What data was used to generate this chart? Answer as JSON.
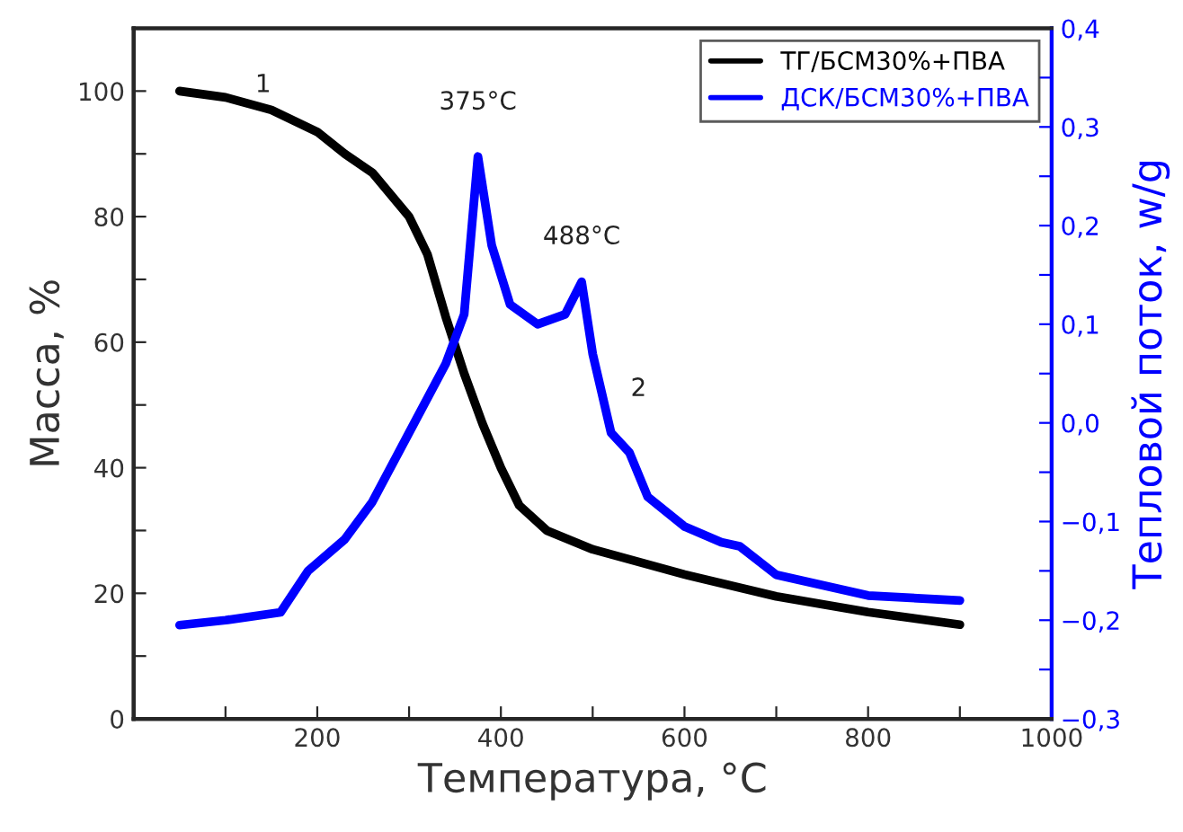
{
  "chart_data": {
    "type": "line",
    "xlabel": "Температура, °C",
    "ylabel": "Масса, %",
    "y2label": "Тепловой поток, w/g",
    "xlim": [
      0,
      1000
    ],
    "xticks": [
      {
        "value": 100,
        "label": null
      },
      200,
      {
        "value": 300,
        "label": null
      },
      400,
      {
        "value": 500,
        "label": null
      },
      600,
      {
        "value": 700,
        "label": null
      },
      800,
      {
        "value": 900,
        "label": null
      },
      1000
    ],
    "ylim": [
      0,
      110
    ],
    "yticks": [
      0,
      {
        "value": 10,
        "label": null
      },
      20,
      {
        "value": 30,
        "label": null
      },
      40,
      {
        "value": 50,
        "label": null
      },
      60,
      {
        "value": 70,
        "label": null
      },
      80,
      {
        "value": 90,
        "label": null
      },
      100
    ],
    "y2lim": [
      -0.3,
      0.4
    ],
    "y2ticks": [
      {
        "value": -0.3,
        "label": "−0,3"
      },
      {
        "value": -0.25,
        "label": null
      },
      {
        "value": -0.2,
        "label": "−0,2"
      },
      {
        "value": -0.15,
        "label": null
      },
      {
        "value": -0.1,
        "label": "−0,1"
      },
      {
        "value": -0.05,
        "label": null
      },
      {
        "value": 0,
        "label": "0,0"
      },
      {
        "value": 0.05,
        "label": null
      },
      {
        "value": 0.1,
        "label": "0,1"
      },
      {
        "value": 0.15,
        "label": null
      },
      {
        "value": 0.2,
        "label": "0,2"
      },
      {
        "value": 0.25,
        "label": null
      },
      {
        "value": 0.3,
        "label": "0,3"
      },
      {
        "value": 0.35,
        "label": null
      },
      {
        "value": 0.4,
        "label": "0,4"
      }
    ],
    "grid": false,
    "legend": "top right",
    "series": [
      {
        "name": "ТГ/БСМ30%+ПВА",
        "color": "#000000",
        "x": [
          50,
          100,
          150,
          200,
          230,
          260,
          300,
          320,
          340,
          360,
          380,
          400,
          420,
          450,
          500,
          600,
          700,
          800,
          900
        ],
        "values": [
          100,
          99,
          97,
          93.5,
          90,
          87,
          80,
          74,
          64,
          55,
          47,
          40,
          34,
          30,
          27,
          23,
          19.5,
          17,
          15
        ]
      },
      {
        "name": "ДСК/БСМ30%+ПВА",
        "color": "#0000ff",
        "axis": "y2",
        "x": [
          50,
          100,
          160,
          190,
          230,
          260,
          300,
          340,
          360,
          375,
          390,
          410,
          440,
          470,
          488,
          500,
          520,
          540,
          560,
          600,
          640,
          660,
          700,
          800,
          900
        ],
        "values": [
          -0.205,
          -0.2,
          -0.192,
          -0.15,
          -0.118,
          -0.08,
          -0.01,
          0.06,
          0.11,
          0.27,
          0.18,
          0.12,
          0.1,
          0.11,
          0.143,
          0.07,
          -0.01,
          -0.03,
          -0.075,
          -0.105,
          -0.121,
          -0.125,
          -0.154,
          -0.175,
          -0.18
        ]
      }
    ],
    "annotations": [
      "375°C",
      "488°C",
      "1",
      "2"
    ]
  }
}
